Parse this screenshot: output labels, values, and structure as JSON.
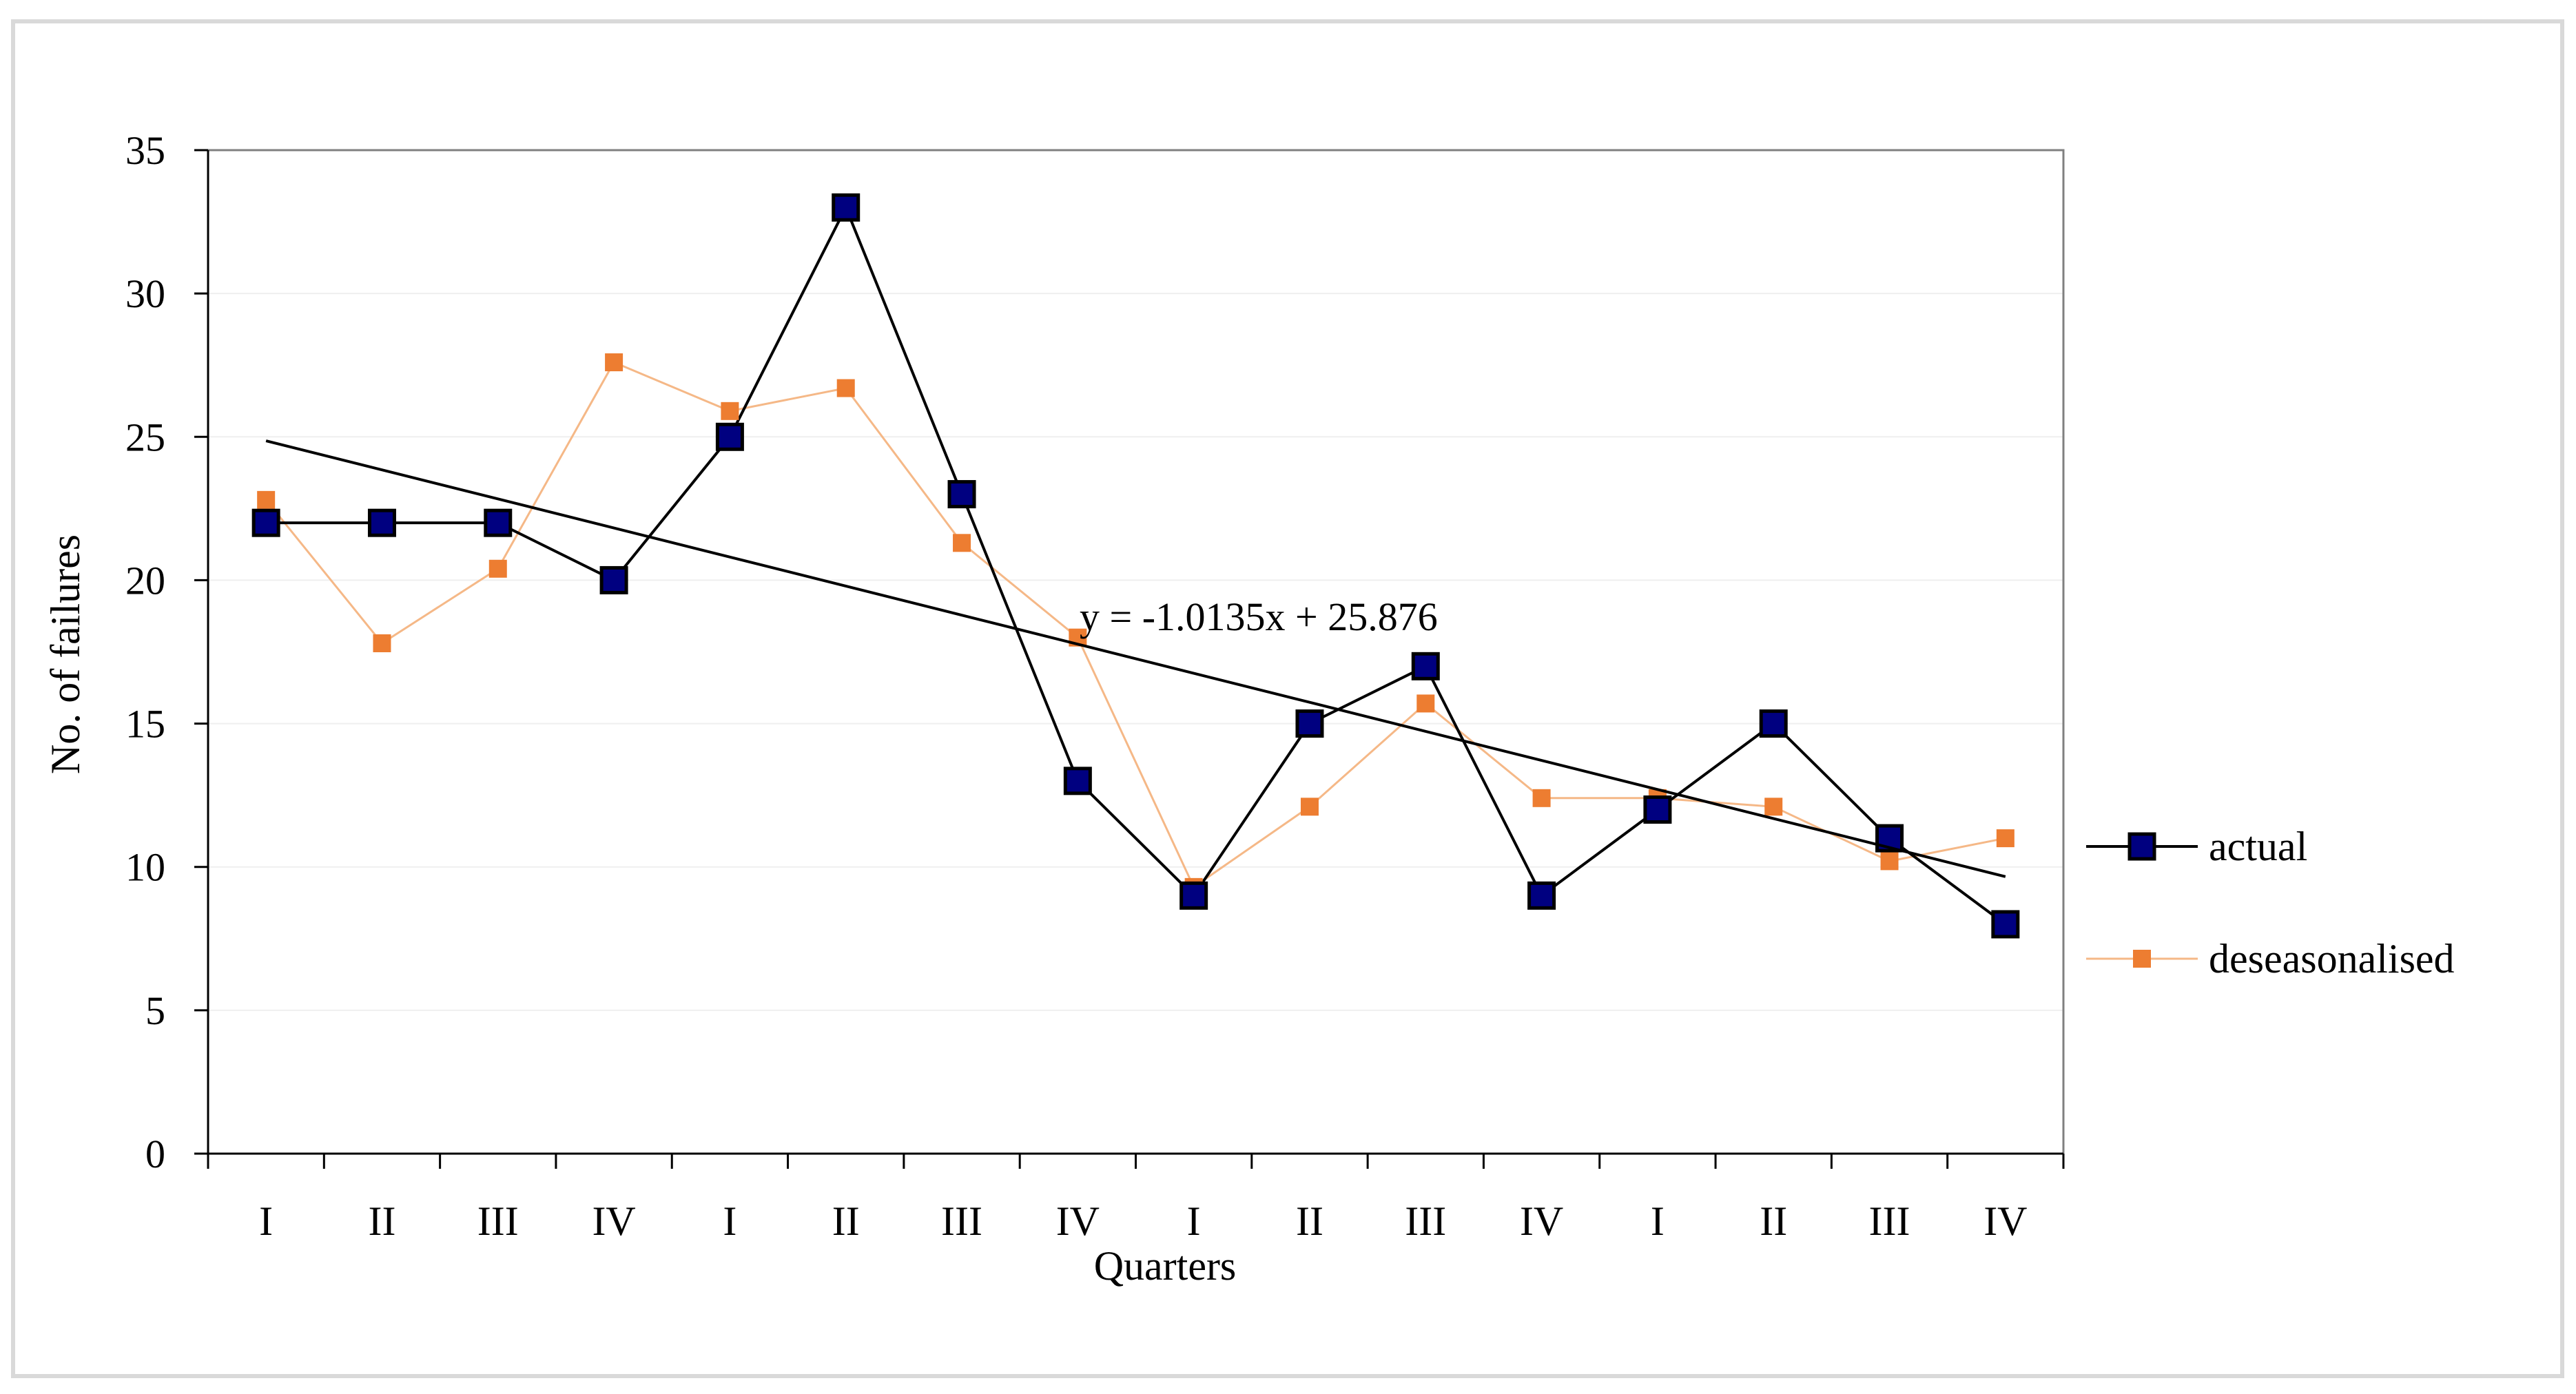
{
  "chart_data": {
    "type": "line",
    "title": "",
    "xlabel": "Quarters",
    "ylabel": "No. of failures",
    "categories": [
      "I",
      "II",
      "III",
      "IV",
      "I",
      "II",
      "III",
      "IV",
      "I",
      "II",
      "III",
      "IV",
      "I",
      "II",
      "III",
      "IV"
    ],
    "ylim": [
      0,
      35
    ],
    "yticks": [
      0,
      5,
      10,
      15,
      20,
      25,
      30,
      35
    ],
    "grid": true,
    "legend_position": "right",
    "series": [
      {
        "name": "actual",
        "values": [
          22,
          22,
          22,
          20,
          25,
          33,
          23,
          13,
          9,
          15,
          17,
          9,
          12,
          15,
          11,
          8
        ],
        "line_color": "#000000",
        "marker_color": "#000080"
      },
      {
        "name": "deseasonalised",
        "values": [
          22.8,
          17.8,
          20.4,
          27.6,
          25.9,
          26.7,
          21.3,
          18.0,
          9.3,
          12.1,
          15.7,
          12.4,
          12.4,
          12.1,
          10.2,
          11.0
        ],
        "line_color": "#F5B887",
        "marker_color": "#ED7D31"
      }
    ],
    "trendline": {
      "slope": -1.0135,
      "intercept": 25.876,
      "equation": "y = -1.0135x + 25.876",
      "color": "#000000"
    }
  }
}
